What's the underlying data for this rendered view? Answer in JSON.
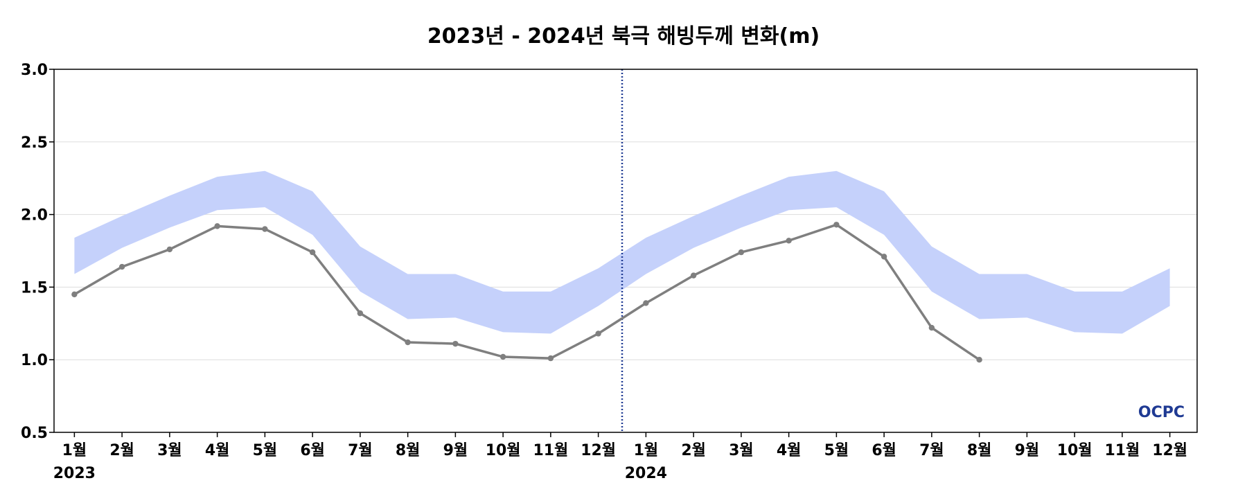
{
  "chart_data": {
    "type": "line",
    "title": "2023년 - 2024년 북극 해빙두께 변화(m)",
    "xlabel": "",
    "ylabel": "",
    "ylim": [
      0.5,
      3.0
    ],
    "yticks": [
      "0.5",
      "1.0",
      "1.5",
      "2.0",
      "2.5",
      "3.0"
    ],
    "ytick_values": [
      0.5,
      1.0,
      1.5,
      2.0,
      2.5,
      3.0
    ],
    "categories": [
      "1월",
      "2월",
      "3월",
      "4월",
      "5월",
      "6월",
      "7월",
      "8월",
      "9월",
      "10월",
      "11월",
      "12월",
      "1월",
      "2월",
      "3월",
      "4월",
      "5월",
      "6월",
      "7월",
      "8월",
      "9월",
      "10월",
      "11월",
      "12월"
    ],
    "year_labels": [
      {
        "label": "2023",
        "index": 0
      },
      {
        "label": "2024",
        "index": 12
      }
    ],
    "grid": true,
    "year_divider_between": [
      11,
      12
    ],
    "band": {
      "upper": [
        1.84,
        1.99,
        2.13,
        2.26,
        2.3,
        2.16,
        1.78,
        1.59,
        1.59,
        1.47,
        1.47,
        1.63,
        1.84,
        1.99,
        2.13,
        2.26,
        2.3,
        2.16,
        1.78,
        1.59,
        1.59,
        1.47,
        1.47,
        1.63
      ],
      "lower": [
        1.59,
        1.77,
        1.91,
        2.03,
        2.05,
        1.86,
        1.47,
        1.28,
        1.29,
        1.19,
        1.18,
        1.37,
        1.59,
        1.77,
        1.91,
        2.03,
        2.05,
        1.86,
        1.47,
        1.28,
        1.29,
        1.19,
        1.18,
        1.37
      ]
    },
    "series": [
      {
        "values": [
          1.45,
          1.64,
          1.76,
          1.92,
          1.9,
          1.74,
          1.32,
          1.12,
          1.11,
          1.02,
          1.01,
          1.18,
          1.39,
          1.58,
          1.74,
          1.82,
          1.93,
          1.71,
          1.22,
          1.0,
          null,
          null,
          null,
          null
        ]
      }
    ],
    "colors": {
      "band": "#c5d1fb",
      "line": "#7f7f7f",
      "grid": "#dddddd",
      "divider": "#1f3a93"
    }
  },
  "watermark": {
    "text": "OCPC",
    "color_a": "#1aa3b8",
    "color_b": "#1f3a93"
  }
}
